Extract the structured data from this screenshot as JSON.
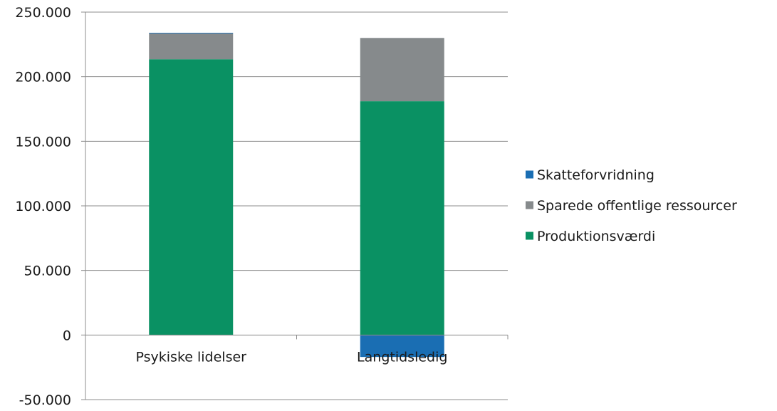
{
  "chart_data": {
    "type": "bar",
    "stacked": true,
    "title": "",
    "xlabel": "",
    "ylabel": "",
    "categories": [
      "Psykiske lidelser",
      "Langtidsledig"
    ],
    "series": [
      {
        "name": "Produktionsværdi",
        "color": "#0a9163",
        "values": [
          213500,
          181000
        ]
      },
      {
        "name": "Sparede offentlige ressourcer",
        "color": "#868a8c",
        "values": [
          20000,
          49000
        ]
      },
      {
        "name": "Skatteforvridning",
        "color": "#1a6eb3",
        "values": [
          500,
          -17000
        ]
      }
    ],
    "ylim": [
      -50000,
      250000
    ],
    "yticks": [
      -50000,
      0,
      50000,
      100000,
      150000,
      200000,
      250000
    ],
    "ytick_labels": [
      "-50.000",
      "0",
      "50.000",
      "100.000",
      "150.000",
      "200.000",
      "250.000"
    ],
    "grid": true,
    "legend_position": "right",
    "legend_order": [
      "Skatteforvridning",
      "Sparede offentlige ressourcer",
      "Produktionsværdi"
    ]
  }
}
